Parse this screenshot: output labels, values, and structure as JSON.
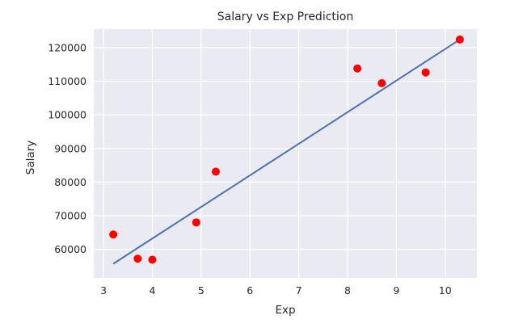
{
  "chart_data": {
    "type": "scatter",
    "title": "Salary vs Exp Prediction",
    "xlabel": "Exp",
    "ylabel": "Salary",
    "xlim": [
      2.8,
      10.65
    ],
    "ylim": [
      51500,
      125500
    ],
    "x_ticks": [
      3,
      4,
      5,
      6,
      7,
      8,
      9,
      10
    ],
    "y_ticks": [
      60000,
      70000,
      80000,
      90000,
      100000,
      110000,
      120000
    ],
    "grid": true,
    "series": [
      {
        "type": "scatter",
        "color": "#ff0000",
        "points": [
          {
            "x": 3.2,
            "y": 64400
          },
          {
            "x": 3.7,
            "y": 57200
          },
          {
            "x": 4.0,
            "y": 56900
          },
          {
            "x": 4.9,
            "y": 68000
          },
          {
            "x": 5.3,
            "y": 83100
          },
          {
            "x": 8.2,
            "y": 113800
          },
          {
            "x": 8.7,
            "y": 109400
          },
          {
            "x": 9.6,
            "y": 112600
          },
          {
            "x": 10.3,
            "y": 122400
          }
        ]
      },
      {
        "type": "line",
        "color": "#4c72b0",
        "points": [
          {
            "x": 3.2,
            "y": 55700
          },
          {
            "x": 10.3,
            "y": 122400
          }
        ]
      }
    ]
  }
}
